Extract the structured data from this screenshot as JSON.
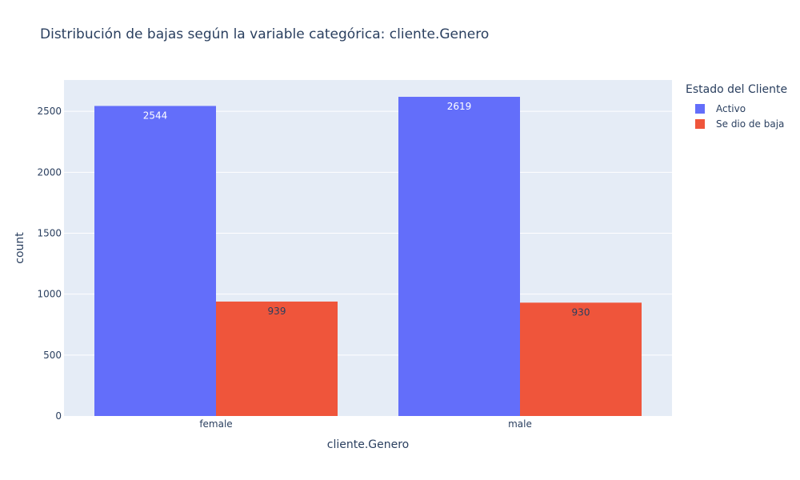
{
  "chart_data": {
    "type": "bar",
    "title": "Distribución de bajas según la variable categórica: cliente.Genero",
    "xlabel": "cliente.Genero",
    "ylabel": "count",
    "categories": [
      "female",
      "male"
    ],
    "series": [
      {
        "name": "Activo",
        "values": [
          2544,
          2619
        ],
        "color": "#636efa",
        "label_color": "#ffffff"
      },
      {
        "name": "Se dio de baja",
        "values": [
          939,
          930
        ],
        "color": "#ef553b",
        "label_color": "#2a3f5f"
      }
    ],
    "ylim": [
      0,
      2757
    ],
    "yticks": [
      0,
      500,
      1000,
      1500,
      2000,
      2500
    ],
    "grid": true,
    "barmode": "group",
    "legend": {
      "title": "Estado del Cliente",
      "placement": "right"
    },
    "plot_background": "#e5ecf6"
  }
}
